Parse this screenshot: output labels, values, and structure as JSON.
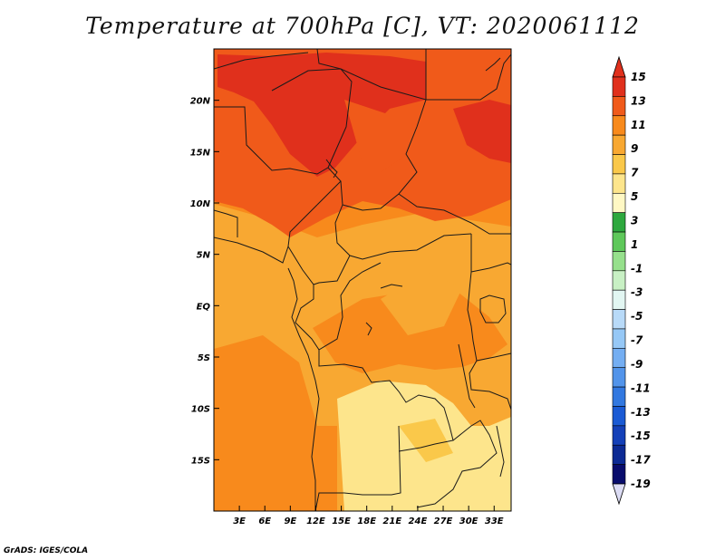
{
  "title": "Temperature at 700hPa [C], VT: 2020061112",
  "credit": "GrADS: IGES/COLA",
  "map": {
    "lon_range": [
      0,
      35
    ],
    "lat_range": [
      -20,
      25
    ],
    "lon_ticks": [
      "3E",
      "6E",
      "9E",
      "12E",
      "15E",
      "18E",
      "21E",
      "24E",
      "27E",
      "30E",
      "33E"
    ],
    "lat_ticks": [
      "20N",
      "15N",
      "10N",
      "5N",
      "EQ",
      "5S",
      "10S",
      "15S"
    ]
  },
  "colorbar": {
    "labels": [
      "15",
      "13",
      "11",
      "9",
      "7",
      "5",
      "3",
      "1",
      "-1",
      "-3",
      "-5",
      "-7",
      "-9",
      "-11",
      "-13",
      "-15",
      "-17",
      "-19"
    ],
    "colors": [
      "#e0301c",
      "#f05a1a",
      "#f88a1c",
      "#f8a832",
      "#fac84a",
      "#fde58c",
      "#fff8c4",
      "#2ea83e",
      "#5ec85a",
      "#96e08c",
      "#c8f0c4",
      "#e2f6f2",
      "#b8daf8",
      "#96c8f6",
      "#74aef2",
      "#5294ea",
      "#3278e0",
      "#1a5ad4",
      "#1440b8",
      "#0c2a94",
      "#080c6c"
    ],
    "top_arrow_color": "#e0301c",
    "bottom_arrow_color": "#dcdcf4"
  }
}
